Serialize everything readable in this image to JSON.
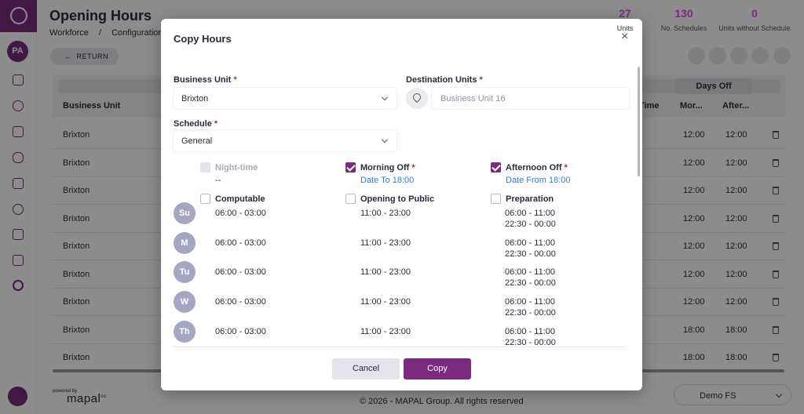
{
  "sidebar": {
    "avatar": "PA"
  },
  "header": {
    "title": "Opening Hours",
    "breadcrumb": [
      "Workforce",
      "/",
      "Configuration"
    ],
    "stats": [
      {
        "value": 27,
        "label": "Units"
      },
      {
        "value": 130,
        "label": "No. Schedules"
      },
      {
        "value": 0,
        "label": "Units without Schedule"
      }
    ]
  },
  "return_button": "RETURN",
  "table": {
    "columns": [
      "Business Unit",
      "Time"
    ],
    "group_header": "Days Off",
    "subcolumns": [
      "Mor...",
      "After..."
    ],
    "rows": [
      [
        "Brixton",
        "12:00",
        "12:00"
      ],
      [
        "Brixton",
        "12:00",
        "12:00"
      ],
      [
        "Brixton",
        "12:00",
        "12:00"
      ],
      [
        "Brixton",
        "12:00",
        "12:00"
      ],
      [
        "Brixton",
        "12:00",
        "12:00"
      ],
      [
        "Brixton",
        "12:00",
        "12:00"
      ],
      [
        "Brixton",
        "12:00",
        "12:00"
      ],
      [
        "Brixton",
        "18:00",
        "18:00"
      ],
      [
        "Brixton",
        "18:00",
        "18:00"
      ]
    ]
  },
  "footer": {
    "powered_by": "powered by",
    "brand": "mapal",
    "brand_suffix": "os",
    "copyright": "© 2026 - MAPAL Group. All rights reserved",
    "account": "Demo FS"
  },
  "modal": {
    "title": "Copy Hours",
    "required_mark": "*",
    "business_unit": {
      "label": "Business Unit",
      "value": "Brixton"
    },
    "destination_units": {
      "label": "Destination Units",
      "placeholder": "Business Unit 16"
    },
    "schedule": {
      "label": "Schedule",
      "value": "General"
    },
    "options": [
      {
        "label": "Night-time",
        "checked": false,
        "disabled": true,
        "required": false,
        "note": "--"
      },
      {
        "label": "Morning Off",
        "checked": true,
        "disabled": false,
        "required": true,
        "note": "Date To 18:00"
      },
      {
        "label": "Afternoon Off",
        "checked": true,
        "disabled": false,
        "required": true,
        "note": "Date From 18:00"
      },
      {
        "label": "Computable",
        "checked": false,
        "disabled": false,
        "required": false
      },
      {
        "label": "Opening to Public",
        "checked": false,
        "disabled": false,
        "required": false
      },
      {
        "label": "Preparation",
        "checked": false,
        "disabled": false,
        "required": false
      }
    ],
    "days": [
      {
        "day": "Su",
        "computable": "06:00 - 03:00",
        "opening": "11:00 - 23:00",
        "preparation": [
          "06:00 - 11:00",
          "22:30 - 00:00"
        ]
      },
      {
        "day": "M",
        "computable": "06:00 - 03:00",
        "opening": "11:00 - 23:00",
        "preparation": [
          "06:00 - 11:00",
          "22:30 - 00:00"
        ]
      },
      {
        "day": "Tu",
        "computable": "06:00 - 03:00",
        "opening": "11:00 - 23:00",
        "preparation": [
          "06:00 - 11:00",
          "22:30 - 00:00"
        ]
      },
      {
        "day": "W",
        "computable": "06:00 - 03:00",
        "opening": "11:00 - 23:00",
        "preparation": [
          "06:00 - 11:00",
          "22:30 - 00:00"
        ]
      },
      {
        "day": "Th",
        "computable": "06:00 - 03:00",
        "opening": "11:00 - 23:00",
        "preparation": [
          "06:00 - 11:00",
          "22:30 - 00:00"
        ]
      }
    ],
    "cancel": "Cancel",
    "copy": "Copy"
  }
}
